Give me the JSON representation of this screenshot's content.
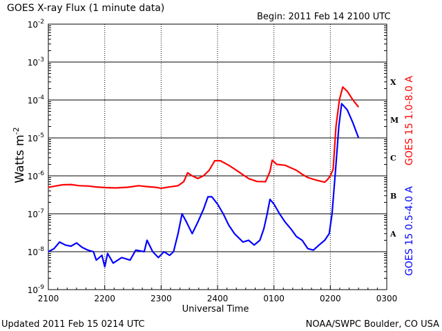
{
  "header": {
    "title": "GOES X-ray Flux (1 minute data)",
    "begin": "Begin:  2011 Feb 14  2100 UTC"
  },
  "footer": {
    "updated": "Updated 2011 Feb 15 0214 UTC",
    "credit": "NOAA/SWPC Boulder, CO USA"
  },
  "chart_data": {
    "type": "line",
    "title": "GOES X-ray Flux (1 minute data)",
    "xlabel": "Universal Time",
    "ylabel": "Watts m",
    "ylabel_sup": "-2",
    "y_scale": "log",
    "ylim": [
      1e-09,
      0.01
    ],
    "x_tick_labels": [
      "2100",
      "2200",
      "2300",
      "2400",
      "0100",
      "0200",
      "0300"
    ],
    "y_ticks": [
      {
        "base": "10",
        "exp": "-2",
        "value": 0.01
      },
      {
        "base": "10",
        "exp": "-3",
        "value": 0.001
      },
      {
        "base": "10",
        "exp": "-4",
        "value": 0.0001
      },
      {
        "base": "10",
        "exp": "-5",
        "value": 1e-05
      },
      {
        "base": "10",
        "exp": "-6",
        "value": 1e-06
      },
      {
        "base": "10",
        "exp": "-7",
        "value": 1e-07
      },
      {
        "base": "10",
        "exp": "-8",
        "value": 1e-08
      },
      {
        "base": "10",
        "exp": "-9",
        "value": 1e-09
      }
    ],
    "flare_classes": [
      {
        "label": "X",
        "value": 0.0003
      },
      {
        "label": "M",
        "value": 3e-05
      },
      {
        "label": "C",
        "value": 3e-06
      },
      {
        "label": "B",
        "value": 3e-07
      },
      {
        "label": "A",
        "value": 3e-08
      }
    ],
    "series": [
      {
        "name": "GOES 15 1.0-8.0 A",
        "color": "#ff0000",
        "points": [
          [
            0.0,
            5e-07
          ],
          [
            0.1,
            5.3e-07
          ],
          [
            0.25,
            5.8e-07
          ],
          [
            0.4,
            5.9e-07
          ],
          [
            0.55,
            5.5e-07
          ],
          [
            0.7,
            5.4e-07
          ],
          [
            0.85,
            5.1e-07
          ],
          [
            1.0,
            4.9e-07
          ],
          [
            1.2,
            4.8e-07
          ],
          [
            1.4,
            5e-07
          ],
          [
            1.6,
            5.5e-07
          ],
          [
            1.75,
            5.2e-07
          ],
          [
            1.9,
            5e-07
          ],
          [
            2.0,
            4.7e-07
          ],
          [
            2.15,
            5.1e-07
          ],
          [
            2.3,
            5.5e-07
          ],
          [
            2.4,
            7e-07
          ],
          [
            2.47,
            1.2e-06
          ],
          [
            2.55,
            1e-06
          ],
          [
            2.65,
            8.5e-07
          ],
          [
            2.75,
            1e-06
          ],
          [
            2.85,
            1.4e-06
          ],
          [
            2.95,
            2.5e-06
          ],
          [
            3.05,
            2.5e-06
          ],
          [
            3.2,
            1.9e-06
          ],
          [
            3.4,
            1.2e-06
          ],
          [
            3.55,
            8.5e-07
          ],
          [
            3.7,
            7.1e-07
          ],
          [
            3.85,
            7e-07
          ],
          [
            3.93,
            1.3e-06
          ],
          [
            3.97,
            2.6e-06
          ],
          [
            4.05,
            2e-06
          ],
          [
            4.2,
            1.9e-06
          ],
          [
            4.4,
            1.4e-06
          ],
          [
            4.5,
            1.1e-06
          ],
          [
            4.6,
            9e-07
          ],
          [
            4.75,
            7.7e-07
          ],
          [
            4.9,
            6.8e-07
          ],
          [
            4.95,
            8e-07
          ],
          [
            5.0,
            1e-06
          ],
          [
            5.05,
            1.5e-06
          ],
          [
            5.1,
            2e-05
          ],
          [
            5.16,
            0.0001
          ],
          [
            5.22,
            0.00022
          ],
          [
            5.3,
            0.00017
          ],
          [
            5.4,
            0.0001
          ],
          [
            5.5,
            6.5e-05
          ]
        ]
      },
      {
        "name": "GOES 15 0.5-4.0 A",
        "color": "#0000ff",
        "points": [
          [
            0.0,
            1e-08
          ],
          [
            0.1,
            1.2e-08
          ],
          [
            0.2,
            1.8e-08
          ],
          [
            0.3,
            1.5e-08
          ],
          [
            0.4,
            1.4e-08
          ],
          [
            0.5,
            1.7e-08
          ],
          [
            0.6,
            1.3e-08
          ],
          [
            0.7,
            1.1e-08
          ],
          [
            0.8,
            1e-08
          ],
          [
            0.85,
            6e-09
          ],
          [
            0.95,
            8e-09
          ],
          [
            1.0,
            4e-09
          ],
          [
            1.05,
            9e-09
          ],
          [
            1.15,
            5e-09
          ],
          [
            1.3,
            7e-09
          ],
          [
            1.45,
            6e-09
          ],
          [
            1.55,
            1.1e-08
          ],
          [
            1.7,
            1e-08
          ],
          [
            1.75,
            2e-08
          ],
          [
            1.85,
            1e-08
          ],
          [
            1.95,
            7e-09
          ],
          [
            2.05,
            1e-08
          ],
          [
            2.15,
            8e-09
          ],
          [
            2.22,
            1e-08
          ],
          [
            2.3,
            3e-08
          ],
          [
            2.37,
            1e-07
          ],
          [
            2.45,
            6e-08
          ],
          [
            2.55,
            3e-08
          ],
          [
            2.65,
            6e-08
          ],
          [
            2.75,
            1.3e-07
          ],
          [
            2.83,
            2.8e-07
          ],
          [
            2.9,
            2.8e-07
          ],
          [
            3.0,
            1.8e-07
          ],
          [
            3.1,
            1e-07
          ],
          [
            3.2,
            5e-08
          ],
          [
            3.3,
            3e-08
          ],
          [
            3.45,
            1.8e-08
          ],
          [
            3.55,
            2e-08
          ],
          [
            3.65,
            1.5e-08
          ],
          [
            3.75,
            2e-08
          ],
          [
            3.82,
            4e-08
          ],
          [
            3.88,
            1e-07
          ],
          [
            3.93,
            2.4e-07
          ],
          [
            4.0,
            1.8e-07
          ],
          [
            4.1,
            1e-07
          ],
          [
            4.2,
            6e-08
          ],
          [
            4.3,
            4e-08
          ],
          [
            4.4,
            2.5e-08
          ],
          [
            4.5,
            2e-08
          ],
          [
            4.6,
            1.2e-08
          ],
          [
            4.7,
            1.1e-08
          ],
          [
            4.8,
            1.5e-08
          ],
          [
            4.9,
            2e-08
          ],
          [
            4.98,
            3e-08
          ],
          [
            5.03,
            1e-07
          ],
          [
            5.1,
            2e-06
          ],
          [
            5.15,
            2e-05
          ],
          [
            5.2,
            8e-05
          ],
          [
            5.3,
            5.5e-05
          ],
          [
            5.4,
            2.5e-05
          ],
          [
            5.5,
            1e-05
          ]
        ]
      }
    ]
  }
}
